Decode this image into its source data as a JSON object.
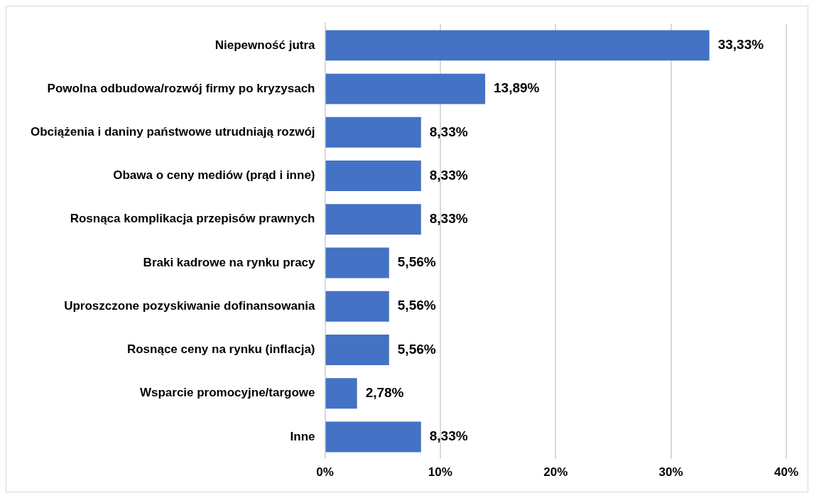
{
  "chart_data": {
    "type": "bar",
    "orientation": "horizontal",
    "categories": [
      "Niepewność jutra",
      "Powolna odbudowa/rozwój firmy po kryzysach",
      "Obciążenia i daniny państwowe utrudniają rozwój",
      "Obawa o ceny mediów (prąd i inne)",
      "Rosnąca komplikacja przepisów prawnych",
      "Braki kadrowe na rynku pracy",
      "Uproszczone pozyskiwanie dofinansowania",
      "Rosnące ceny na rynku (inflacja)",
      "Wsparcie promocyjne/targowe",
      "Inne"
    ],
    "values": [
      33.33,
      13.89,
      8.33,
      8.33,
      8.33,
      5.56,
      5.56,
      5.56,
      2.78,
      8.33
    ],
    "value_labels": [
      "33,33%",
      "13,89%",
      "8,33%",
      "8,33%",
      "8,33%",
      "5,56%",
      "5,56%",
      "5,56%",
      "2,78%",
      "8,33%"
    ],
    "color": "#4472c4",
    "xlim": [
      0,
      40
    ],
    "xticks": [
      {
        "value": 0,
        "label": "0%"
      },
      {
        "value": 10,
        "label": "10%"
      },
      {
        "value": 20,
        "label": "20%"
      },
      {
        "value": 30,
        "label": "30%"
      },
      {
        "value": 40,
        "label": "40%"
      }
    ],
    "grid": "x",
    "legend": false
  }
}
